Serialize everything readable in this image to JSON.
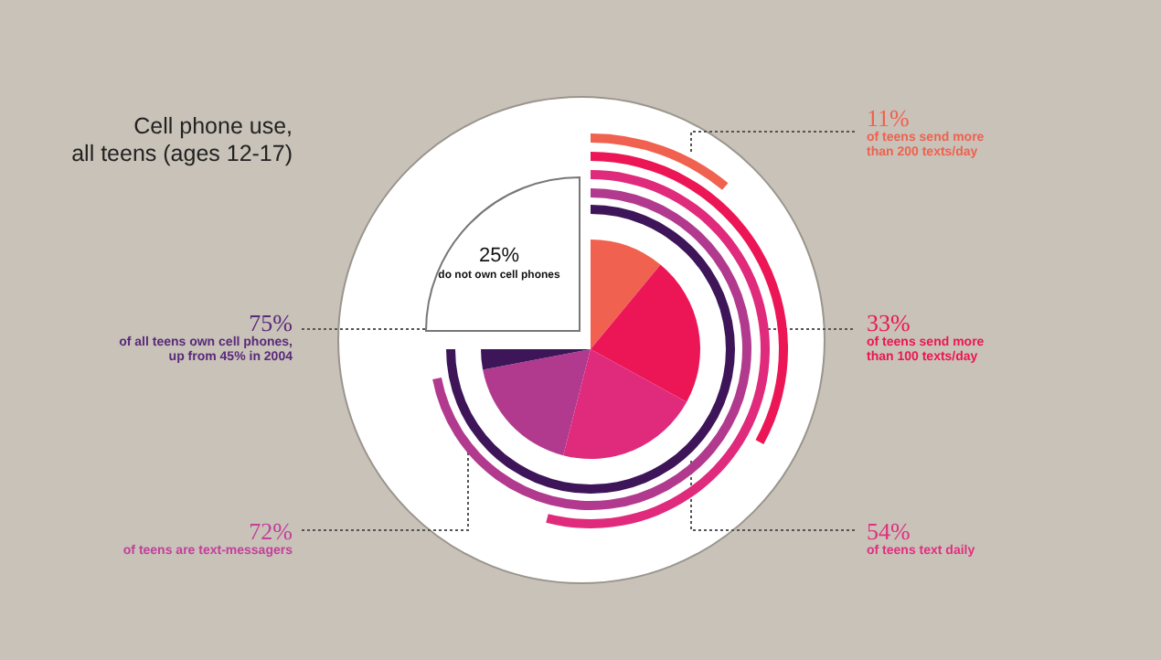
{
  "chart_data": {
    "type": "other",
    "title": "Cell phone use,\nall teens (ages 12-17)",
    "categories": [
      "of teens send more than 200 texts/day",
      "of teens send more than 100 texts/day",
      "of teens text daily",
      "of teens are text-messagers",
      "of all teens own cell phones, up from 45% in 2004",
      "do not own cell phones"
    ],
    "values": [
      11,
      33,
      54,
      72,
      75,
      25
    ],
    "value_labels": [
      "11%",
      "33%",
      "54%",
      "72%",
      "75%",
      "25%"
    ],
    "colors": [
      "#f0614f",
      "#ec1656",
      "#e02a7c",
      "#b23a8e",
      "#3d1558",
      "#ffffff"
    ]
  }
}
